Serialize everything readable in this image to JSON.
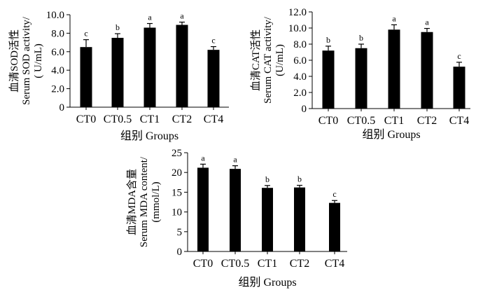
{
  "chart_data": [
    {
      "type": "bar",
      "ylabel_lines": [
        "血清SOD活性",
        "Serum SOD activity/",
        "( U/mL)"
      ],
      "xlabel": "组别 Groups",
      "categories": [
        "CT0",
        "CT0.5",
        "CT1",
        "CT2",
        "CT4"
      ],
      "values": [
        6.5,
        7.5,
        8.6,
        8.9,
        6.2
      ],
      "errors": [
        0.8,
        0.45,
        0.45,
        0.3,
        0.35
      ],
      "letters": [
        "c",
        "b",
        "a",
        "a",
        "c"
      ],
      "ylim": [
        0,
        10
      ],
      "yticks": [
        0,
        2,
        4,
        6,
        8,
        10
      ],
      "ytick_labels": [
        "0",
        "2.0",
        "4.0",
        "6.0",
        "8.0",
        "10.0"
      ]
    },
    {
      "type": "bar",
      "ylabel_lines": [
        "血清CAT活性",
        "Serum CAT activity/",
        "(U/mL)"
      ],
      "xlabel": "组别 Groups",
      "categories": [
        "CT0",
        "CT0.5",
        "CT1",
        "CT2",
        "CT4"
      ],
      "values": [
        7.2,
        7.5,
        9.8,
        9.5,
        5.2
      ],
      "errors": [
        0.55,
        0.5,
        0.6,
        0.45,
        0.55
      ],
      "letters": [
        "b",
        "b",
        "a",
        "a",
        "c"
      ],
      "ylim": [
        0,
        12
      ],
      "yticks": [
        0,
        2,
        4,
        6,
        8,
        10,
        12
      ],
      "ytick_labels": [
        "0",
        "2.0",
        "4.0",
        "6.0",
        "8.0",
        "10.0",
        "12.0"
      ]
    },
    {
      "type": "bar",
      "ylabel_lines": [
        "血清MDA含量",
        "Serum MDA content/",
        "(mmol/L)"
      ],
      "xlabel": "组别 Groups",
      "categories": [
        "CT0",
        "CT0.5",
        "CT1",
        "CT2",
        "CT4"
      ],
      "values": [
        21.2,
        20.9,
        16.1,
        16.2,
        12.3
      ],
      "errors": [
        0.9,
        0.8,
        0.6,
        0.55,
        0.6
      ],
      "letters": [
        "a",
        "a",
        "b",
        "b",
        "c"
      ],
      "ylim": [
        0,
        25
      ],
      "yticks": [
        0,
        5,
        10,
        15,
        20,
        25
      ],
      "ytick_labels": [
        "0",
        "5",
        "10",
        "15",
        "20",
        "25"
      ]
    }
  ]
}
